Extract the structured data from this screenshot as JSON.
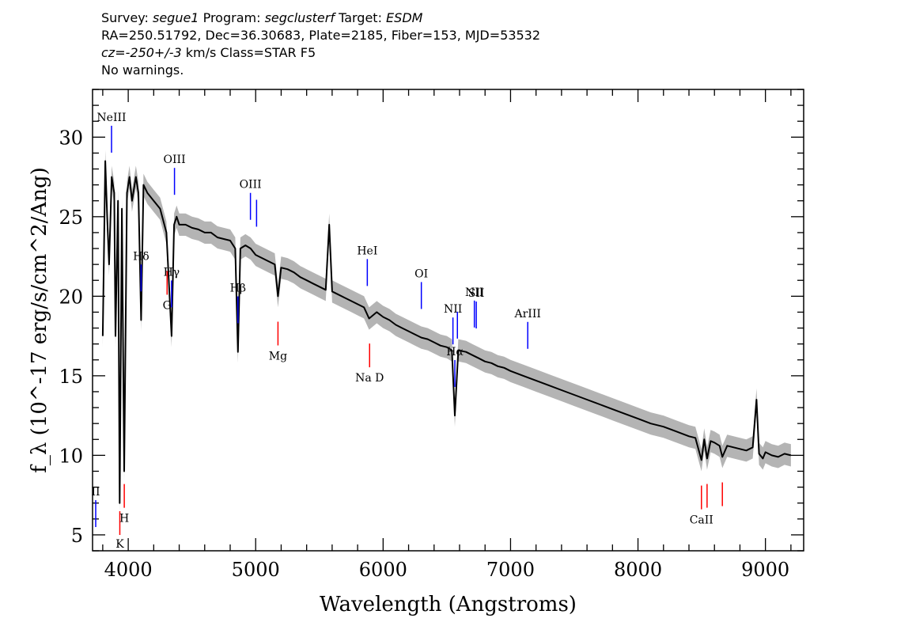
{
  "header": {
    "survey_label": "Survey:",
    "survey": "segue1",
    "program_label": "Program:",
    "program": "segclusterf",
    "target_label": "Target:",
    "target": "ESDM",
    "line2": "RA=250.51792, Dec=36.30683, Plate=2185, Fiber=153, MJD=53532",
    "cz_label": "cz=",
    "cz_value": "-250+/-3",
    "cz_rest": " km/s Class=STAR F5",
    "warnings": "No warnings."
  },
  "chart_data": {
    "type": "line",
    "xlabel": "Wavelength (Angstroms)",
    "ylabel": "f_λ (10^-17 erg/s/cm^2/Ang)",
    "xlim": [
      3720,
      9300
    ],
    "ylim": [
      4,
      33
    ],
    "x_ticks": [
      4000,
      5000,
      6000,
      7000,
      8000,
      9000
    ],
    "y_ticks": [
      5,
      10,
      15,
      20,
      25,
      30
    ],
    "grid": false,
    "colors": {
      "flux": "#000000",
      "error_band": "#b4b4b4",
      "emission_lines": "#0000ff",
      "absorption_lines": "#ff0000"
    },
    "series": [
      {
        "x": [
          3800,
          3820,
          3835,
          3850,
          3870,
          3890,
          3900,
          3920,
          3933,
          3950,
          3968,
          3990,
          4010,
          4030,
          4060,
          4080,
          4101,
          4120,
          4150,
          4200,
          4250,
          4300,
          4340,
          4360,
          4380,
          4400,
          4450,
          4500,
          4550,
          4600,
          4650,
          4700,
          4750,
          4800,
          4840,
          4861,
          4880,
          4920,
          4960,
          5000,
          5050,
          5100,
          5150,
          5175,
          5200,
          5250,
          5300,
          5350,
          5400,
          5450,
          5500,
          5550,
          5577,
          5600,
          5650,
          5700,
          5750,
          5800,
          5850,
          5890,
          5950,
          6000,
          6050,
          6100,
          6150,
          6200,
          6250,
          6300,
          6350,
          6400,
          6450,
          6500,
          6540,
          6563,
          6590,
          6650,
          6700,
          6750,
          6800,
          6850,
          6900,
          6950,
          7000,
          7100,
          7200,
          7300,
          7400,
          7500,
          7600,
          7700,
          7800,
          7900,
          8000,
          8100,
          8200,
          8300,
          8400,
          8450,
          8498,
          8520,
          8542,
          8570,
          8600,
          8640,
          8662,
          8700,
          8750,
          8800,
          8850,
          8900,
          8930,
          8950,
          8980,
          9000,
          9050,
          9100,
          9150,
          9200
        ],
        "y": [
          17.5,
          28.5,
          25.0,
          22.0,
          27.5,
          26.5,
          17.5,
          26.0,
          7.0,
          25.5,
          9.0,
          26.5,
          27.5,
          26.0,
          27.5,
          26.5,
          18.5,
          27.0,
          26.5,
          26.0,
          25.5,
          24.0,
          17.5,
          24.5,
          25.0,
          24.5,
          24.5,
          24.3,
          24.2,
          24.0,
          24.0,
          23.7,
          23.6,
          23.5,
          23.0,
          16.5,
          23.0,
          23.2,
          23.0,
          22.6,
          22.4,
          22.2,
          22.0,
          20.0,
          21.8,
          21.7,
          21.5,
          21.2,
          21.0,
          20.8,
          20.6,
          20.4,
          24.5,
          20.3,
          20.1,
          19.9,
          19.7,
          19.5,
          19.3,
          18.6,
          19.0,
          18.7,
          18.5,
          18.2,
          18.0,
          17.8,
          17.6,
          17.4,
          17.3,
          17.1,
          16.9,
          16.8,
          16.6,
          12.5,
          16.6,
          16.5,
          16.3,
          16.1,
          15.9,
          15.8,
          15.6,
          15.5,
          15.3,
          15.0,
          14.7,
          14.4,
          14.1,
          13.8,
          13.5,
          13.2,
          12.9,
          12.6,
          12.3,
          12.0,
          11.8,
          11.5,
          11.2,
          11.1,
          9.7,
          11.0,
          9.8,
          10.9,
          10.8,
          10.6,
          9.9,
          10.6,
          10.5,
          10.4,
          10.3,
          10.5,
          13.5,
          10.1,
          9.8,
          10.2,
          10.0,
          9.9,
          10.1,
          10.0
        ]
      }
    ],
    "emission_lines": [
      {
        "label": "II",
        "x": 3727
      },
      {
        "label": "NeIII",
        "x": 3869
      },
      {
        "label": "Hδ",
        "x": 4101
      },
      {
        "label": "Hγ",
        "x": 4340
      },
      {
        "label": "OIII",
        "x": 4363
      },
      {
        "label": "Hβ",
        "x": 4861
      },
      {
        "label": "OIII",
        "x": 4959
      },
      {
        "label": "",
        "x": 5007
      },
      {
        "label": "HeI",
        "x": 5876
      },
      {
        "label": "OI",
        "x": 6300
      },
      {
        "label": "NII",
        "x": 6548
      },
      {
        "label": "Hα",
        "x": 6563
      },
      {
        "label": "",
        "x": 6583
      },
      {
        "label": "NII",
        "x": 6716
      },
      {
        "label": "SII",
        "x": 6731
      },
      {
        "label": "ArIII",
        "x": 7135
      }
    ],
    "absorption_lines": [
      {
        "label": "K",
        "x": 3934
      },
      {
        "label": "H",
        "x": 3969
      },
      {
        "label": "G",
        "x": 4305
      },
      {
        "label": "Mg",
        "x": 5175
      },
      {
        "label": "Na D",
        "x": 5894
      },
      {
        "label": "CaII",
        "x": 8498
      },
      {
        "label": "",
        "x": 8542
      },
      {
        "label": "",
        "x": 8662
      }
    ]
  }
}
